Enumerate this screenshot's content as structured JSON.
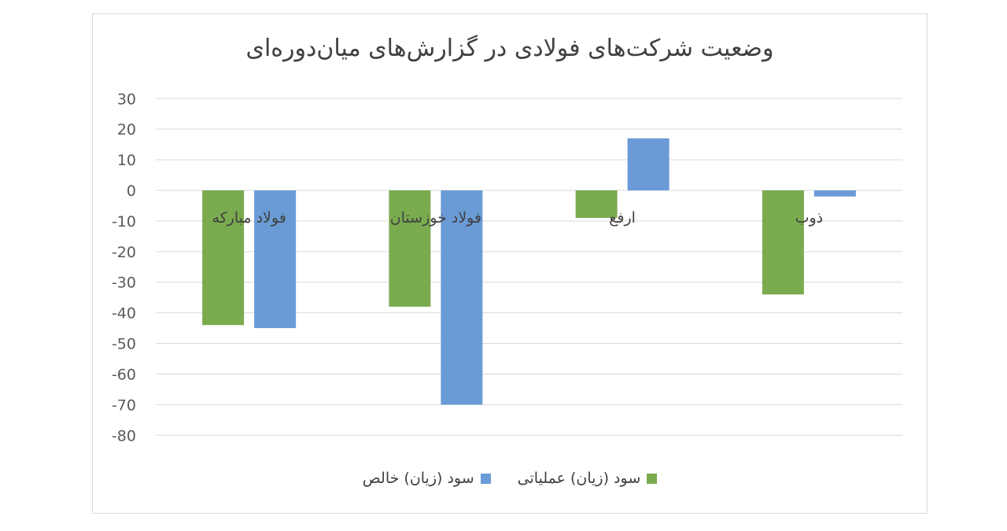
{
  "chart_data": {
    "type": "bar",
    "title": "وضعیت شرکت‌های فولادی در گزارش‌های میان‌دوره‌ای",
    "categories": [
      "فولاد مبارکه",
      "فولاد خوزستان",
      "ارفع",
      "ذوب"
    ],
    "series": [
      {
        "name": "سود (زیان) عملیاتی",
        "color": "#7aab4f",
        "values": [
          -44,
          -38,
          -9,
          -34
        ]
      },
      {
        "name": "سود (زیان) خالص",
        "color": "#6a9bd6",
        "values": [
          -45,
          -70,
          17,
          -2
        ]
      }
    ],
    "yticks": [
      "30",
      "20",
      "10",
      "0",
      "-10",
      "-20",
      "-30",
      "-40",
      "-50",
      "-60",
      "-70",
      "-80"
    ],
    "ylim": [
      -80,
      30
    ],
    "grid": true,
    "legend_position": "bottom"
  }
}
